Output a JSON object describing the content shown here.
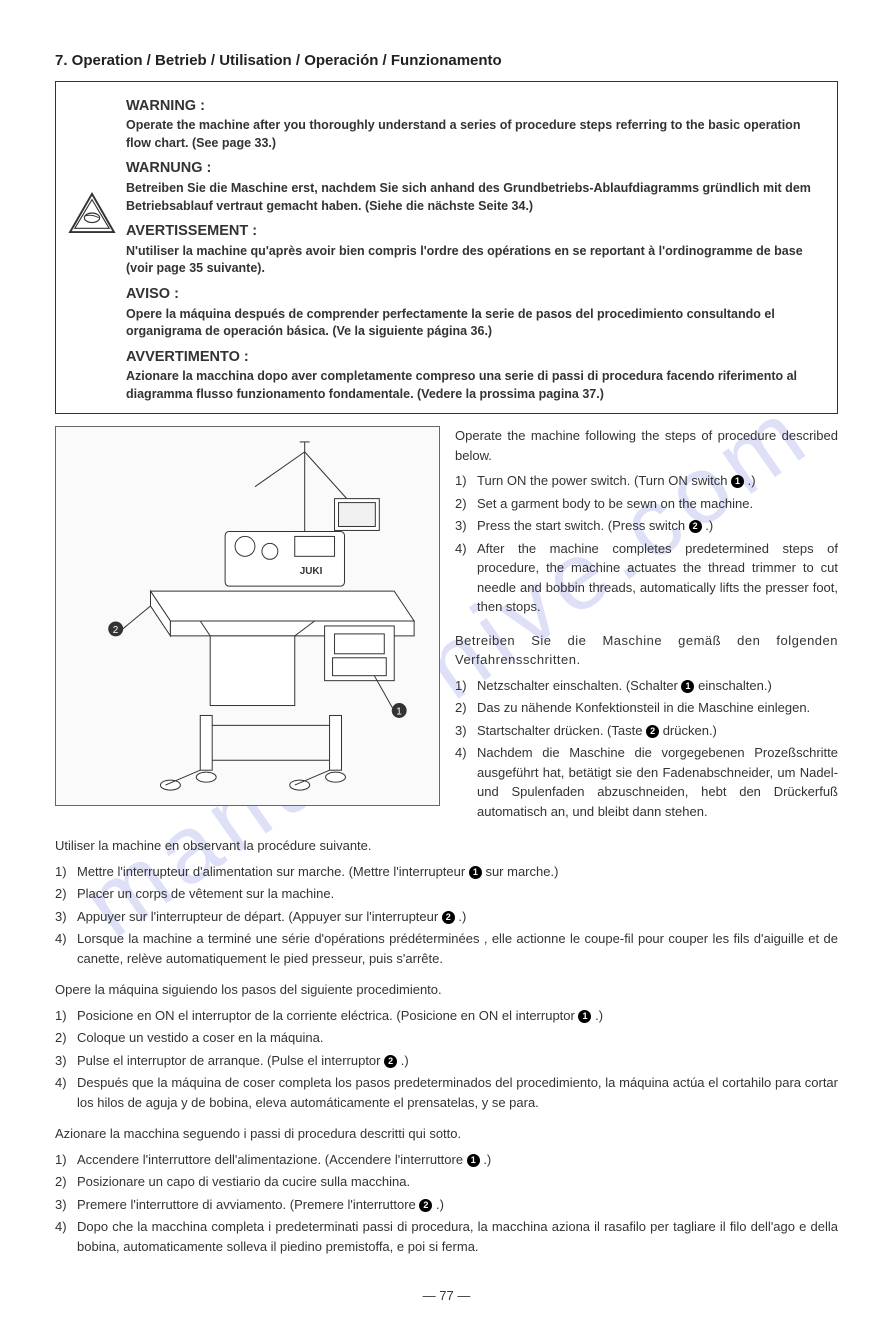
{
  "watermark": "manualshive.com",
  "section_title": "7.  Operation / Betrieb / Utilisation / Operación / Funzionamento",
  "warnings": {
    "en": {
      "heading": "WARNING :",
      "text": "Operate the machine after you thoroughly understand a series of procedure steps referring to the basic operation flow chart. (See page 33.)"
    },
    "de": {
      "heading": "WARNUNG :",
      "text": "Betreiben Sie die Maschine erst, nachdem Sie sich anhand des Grundbetriebs-Ablaufdiagramms gründlich mit dem Betriebsablauf vertraut gemacht haben. (Siehe die nächste Seite 34.)"
    },
    "fr": {
      "heading": "AVERTISSEMENT :",
      "text": "N'utiliser la machine qu'après avoir bien compris l'ordre des opérations en se reportant à l'ordinogramme de base (voir page 35 suivante)."
    },
    "es": {
      "heading": "AVISO :",
      "text": "Opere la máquina después de comprender perfectamente la serie de pasos del procedimiento consultando el organigrama de operación básica. (Ve la siguiente página 36.)"
    },
    "it": {
      "heading": "AVVERTIMENTO :",
      "text": "Azionare la macchina dopo aver completamente compreso una serie di passi di procedura facendo riferimento al diagramma flusso funzionamento fondamentale. (Vedere la prossima pagina 37.)"
    }
  },
  "en": {
    "intro": "Operate the machine following the steps of procedure described below.",
    "steps": [
      "Turn ON the power switch. (Turn ON switch ❶ .)",
      "Set a garment body to be sewn on the machine.",
      "Press the start switch. (Press switch ❷ .)",
      "After the machine completes predetermined steps of procedure, the machine actuates the thread trimmer to cut needle and bobbin threads, automatically lifts the presser foot, then stops."
    ]
  },
  "de": {
    "intro": "Betreiben Sie die Maschine gemäß den folgenden Verfahrensschritten.",
    "steps": [
      "Netzschalter einschalten. (Schalter ❶ einschalten.)",
      "Das zu nähende Konfektionsteil in die Maschine einlegen.",
      "Startschalter drücken. (Taste ❷ drücken.)",
      "Nachdem die Maschine die vorgegebenen Prozeßschritte ausgeführt hat, betätigt sie den Fadenabschneider, um Nadel- und Spulenfaden abzuschneiden, hebt den Drückerfuß automatisch an, und bleibt dann stehen."
    ]
  },
  "fr": {
    "intro": "Utiliser la machine en observant la procédure suivante.",
    "steps": [
      "Mettre l'interrupteur d'alimentation sur marche. (Mettre l'interrupteur ❶ sur marche.)",
      "Placer un corps de vêtement sur la machine.",
      "Appuyer sur l'interrupteur de départ. (Appuyer sur l'interrupteur ❷ .)",
      "Lorsque la machine a terminé une série d'opérations prédéterminées , elle actionne le coupe-fil pour couper les fils d'aiguille et de canette, relève automatiquement le pied presseur, puis s'arrête."
    ]
  },
  "es": {
    "intro": "Opere la máquina siguiendo los pasos del siguiente procedimiento.",
    "steps": [
      "Posicione en ON el interruptor de la corriente eléctrica. (Posicione en ON el interruptor ❶ .)",
      "Coloque un vestido a coser en la máquina.",
      "Pulse el interruptor de arranque. (Pulse el interruptor ❷ .)",
      "Después que la máquina de coser completa los pasos predeterminados del procedimiento, la máquina actúa el cortahilo para cortar los hilos de aguja y de bobina, eleva automáticamente el prensatelas, y se para."
    ]
  },
  "it": {
    "intro": "Azionare la macchina seguendo i passi di procedura descritti qui sotto.",
    "steps": [
      "Accendere l'interruttore dell'alimentazione. (Accendere l'interruttore ❶ .)",
      "Posizionare un capo di vestiario da cucire sulla macchina.",
      "Premere l'interruttore di avviamento. (Premere l'interruttore ❷ .)",
      "Dopo che la macchina completa i predeterminati passi di procedura, la macchina aziona il rasafilo per tagliare il filo dell'ago e della bobina, automaticamente solleva il piedino premistoffa, e poi si ferma."
    ]
  },
  "page_number": "— 77 —"
}
